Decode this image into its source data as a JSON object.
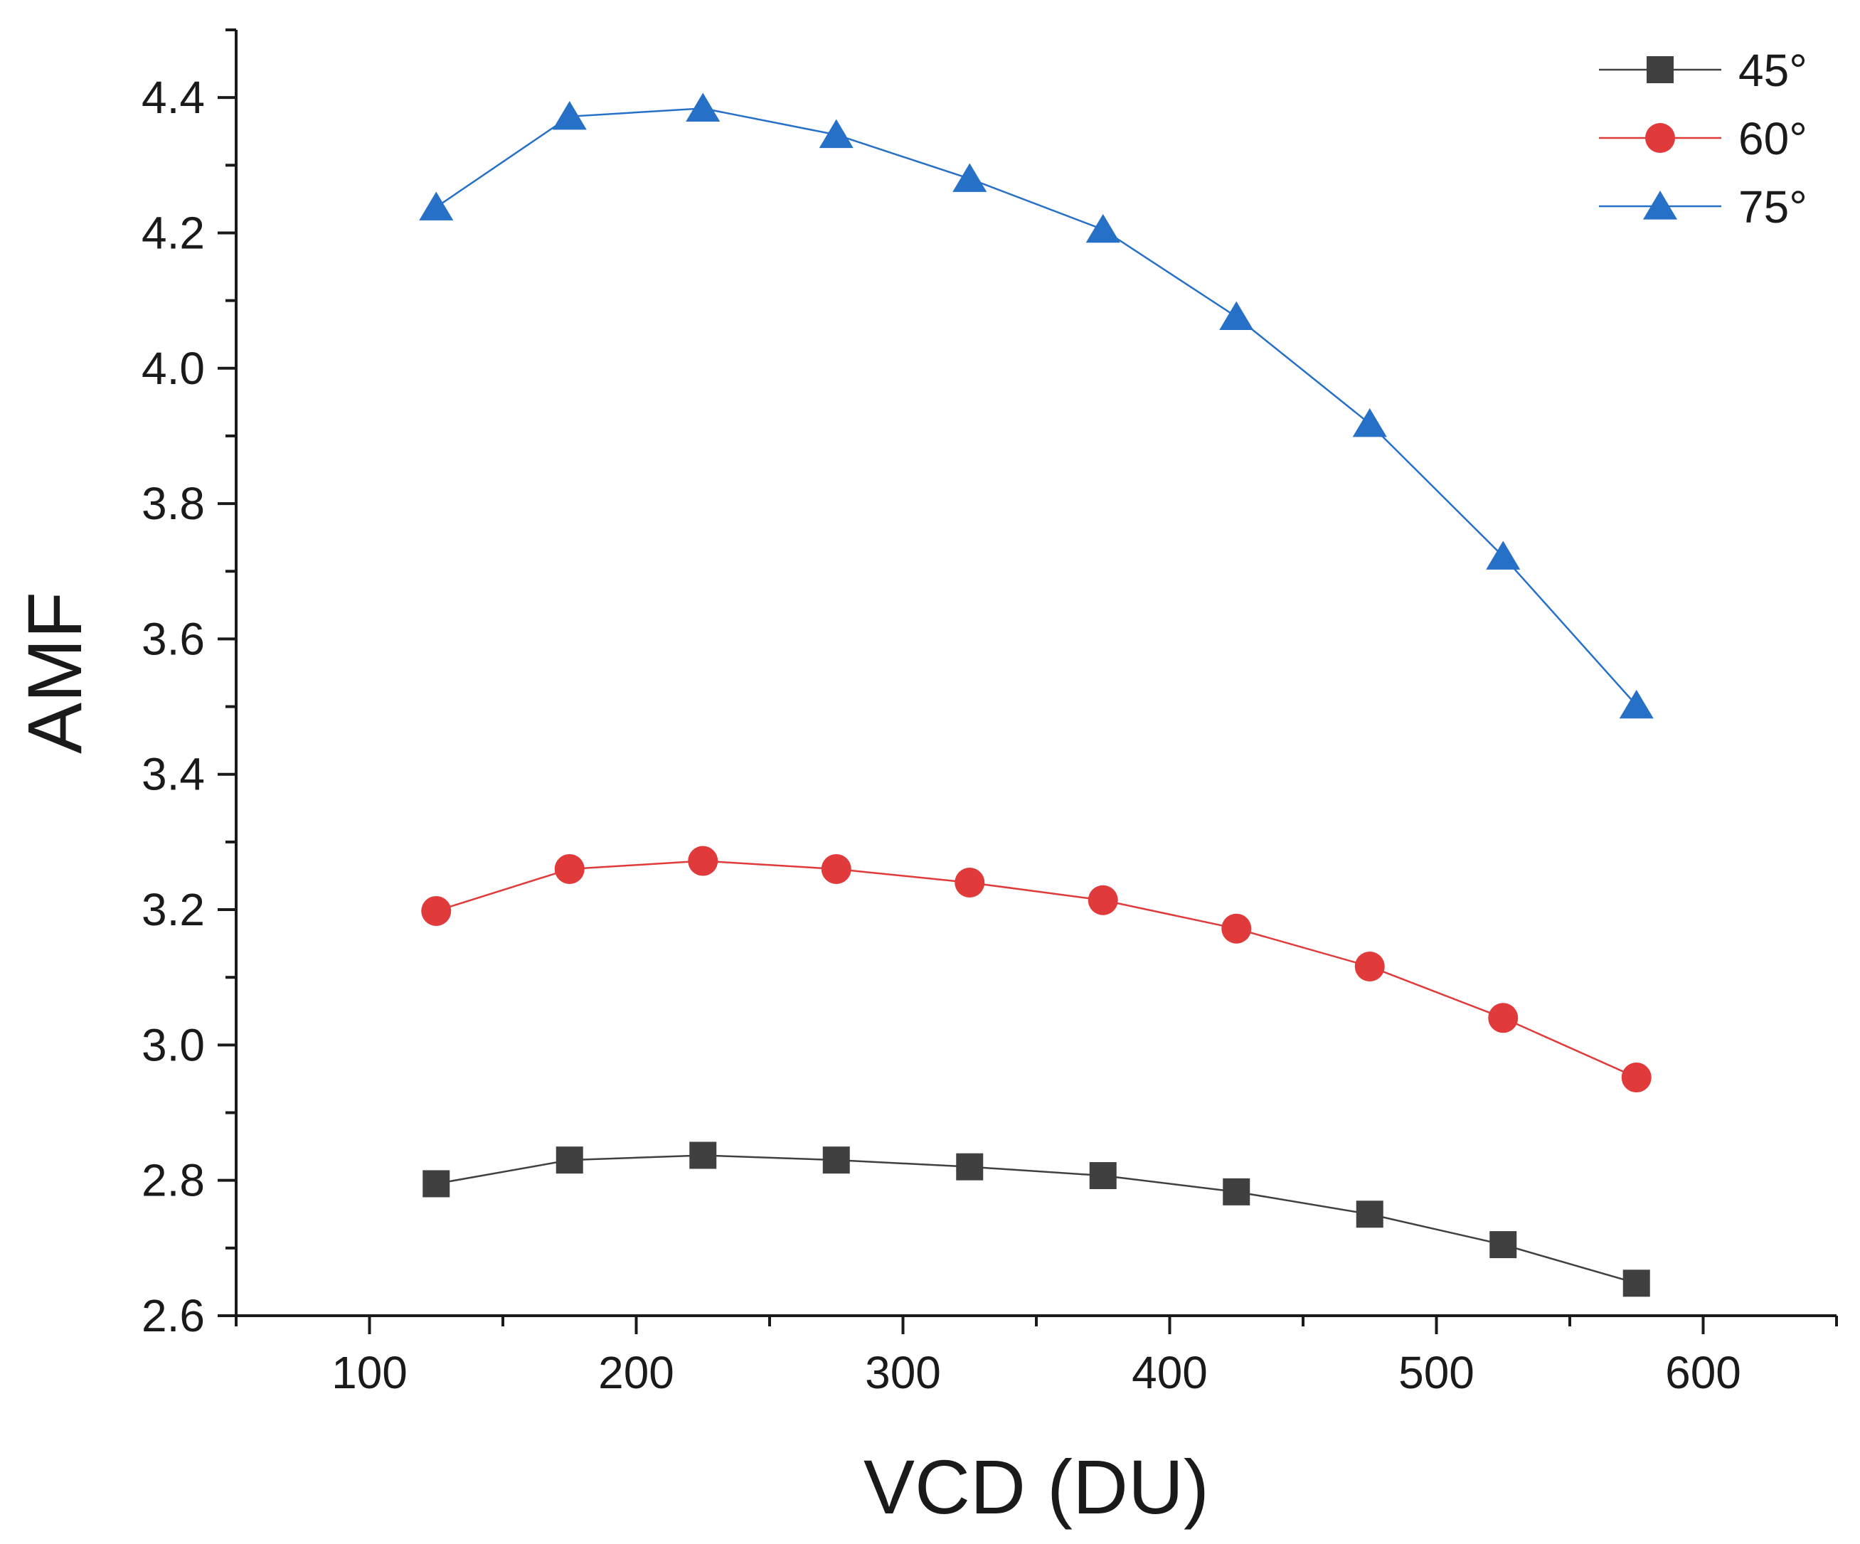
{
  "chart_data": {
    "type": "line",
    "title": "",
    "xlabel": "VCD (DU)",
    "ylabel": "AMF",
    "xlim": [
      50,
      650
    ],
    "ylim": [
      2.6,
      4.5
    ],
    "xticks": [
      100,
      200,
      300,
      400,
      500,
      600
    ],
    "xtick_labels": [
      "100",
      "200",
      "300",
      "400",
      "500",
      "600"
    ],
    "yticks": [
      2.6,
      2.8,
      3.0,
      3.2,
      3.4,
      3.6,
      3.8,
      4.0,
      4.2,
      4.4
    ],
    "ytick_labels": [
      "2.6",
      "2.8",
      "3.0",
      "3.2",
      "3.4",
      "3.6",
      "3.8",
      "4.0",
      "4.2",
      "4.4"
    ],
    "grid": false,
    "legend_position": "top-right",
    "x": [
      125,
      175,
      225,
      275,
      325,
      375,
      425,
      475,
      525,
      575
    ],
    "series": [
      {
        "name": "45°",
        "marker": "square",
        "color": "#404040",
        "values": [
          2.795,
          2.83,
          2.837,
          2.83,
          2.82,
          2.807,
          2.783,
          2.75,
          2.705,
          2.648
        ]
      },
      {
        "name": "60°",
        "marker": "circle",
        "color": "#e03a3a",
        "values": [
          3.198,
          3.26,
          3.272,
          3.26,
          3.24,
          3.214,
          3.172,
          3.116,
          3.04,
          2.952
        ]
      },
      {
        "name": "75°",
        "marker": "triangle",
        "color": "#2670c8",
        "values": [
          4.238,
          4.372,
          4.384,
          4.345,
          4.28,
          4.205,
          4.076,
          3.918,
          3.722,
          3.502
        ]
      }
    ]
  }
}
